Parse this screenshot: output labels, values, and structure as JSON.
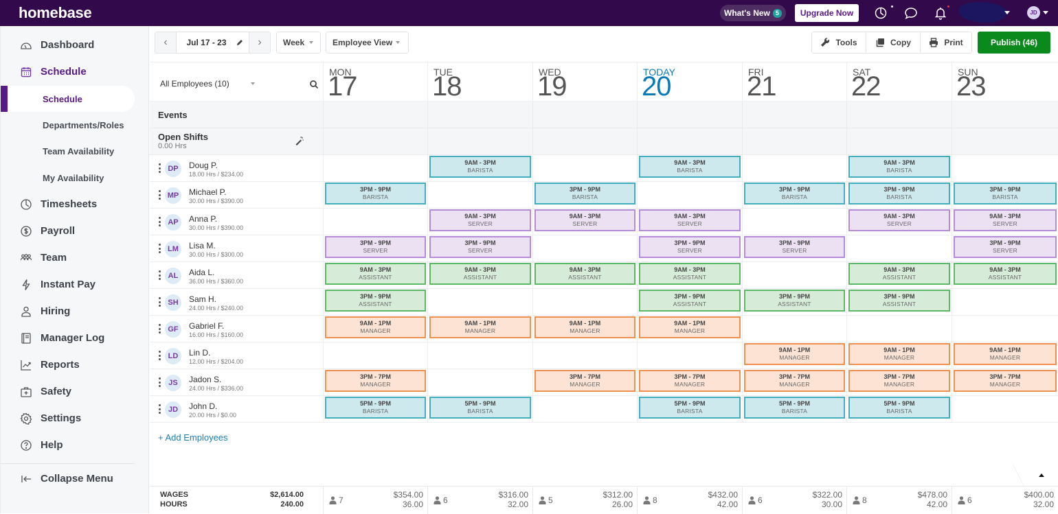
{
  "app": {
    "logo": "homebase",
    "whats_new_label": "What's New",
    "whats_new_count": "5",
    "upgrade_label": "Upgrade Now",
    "user_initials": "JD"
  },
  "sidebar": {
    "items": [
      {
        "label": "Dashboard",
        "icon": "dashboard-icon"
      },
      {
        "label": "Schedule",
        "icon": "calendar-icon",
        "active": true
      },
      {
        "label": "Timesheets",
        "icon": "clock-icon"
      },
      {
        "label": "Payroll",
        "icon": "dollar-icon"
      },
      {
        "label": "Team",
        "icon": "team-icon"
      },
      {
        "label": "Instant Pay",
        "icon": "lightning-icon"
      },
      {
        "label": "Hiring",
        "icon": "person-icon"
      },
      {
        "label": "Manager Log",
        "icon": "book-icon"
      },
      {
        "label": "Reports",
        "icon": "chart-icon"
      },
      {
        "label": "Safety",
        "icon": "first-aid-icon"
      },
      {
        "label": "Settings",
        "icon": "gear-icon"
      },
      {
        "label": "Help",
        "icon": "help-icon"
      }
    ],
    "sub_items": [
      {
        "label": "Schedule",
        "active": true
      },
      {
        "label": "Departments/Roles"
      },
      {
        "label": "Team Availability"
      },
      {
        "label": "My Availability"
      }
    ],
    "collapse_label": "Collapse Menu"
  },
  "toolbar": {
    "date_range": "Jul 17 - 23",
    "period": "Week",
    "view": "Employee View",
    "tools_label": "Tools",
    "copy_label": "Copy",
    "print_label": "Print",
    "publish_label": "Publish (46)"
  },
  "grid": {
    "employee_filter": "All Employees (10)",
    "events_label": "Events",
    "open_shifts_label": "Open Shifts",
    "open_shifts_hours": "0.00 Hrs",
    "add_employees_label": "+ Add Employees",
    "days": [
      {
        "dow": "MON",
        "num": "17"
      },
      {
        "dow": "TUE",
        "num": "18"
      },
      {
        "dow": "WED",
        "num": "19"
      },
      {
        "dow": "TODAY",
        "num": "20",
        "today": true
      },
      {
        "dow": "FRI",
        "num": "21"
      },
      {
        "dow": "SAT",
        "num": "22"
      },
      {
        "dow": "SUN",
        "num": "23"
      }
    ],
    "employees": [
      {
        "initials": "DP",
        "name": "Doug P.",
        "meta": "18.00 Hrs / $234.00",
        "shifts": [
          null,
          {
            "time": "9AM - 3PM",
            "role": "BARISTA",
            "type": "barista"
          },
          null,
          {
            "time": "9AM - 3PM",
            "role": "BARISTA",
            "type": "barista"
          },
          null,
          {
            "time": "9AM - 3PM",
            "role": "BARISTA",
            "type": "barista"
          },
          null
        ]
      },
      {
        "initials": "MP",
        "name": "Michael P.",
        "meta": "30.00 Hrs / $390.00",
        "shifts": [
          {
            "time": "3PM - 9PM",
            "role": "BARISTA",
            "type": "barista"
          },
          null,
          {
            "time": "3PM - 9PM",
            "role": "BARISTA",
            "type": "barista"
          },
          null,
          {
            "time": "3PM - 9PM",
            "role": "BARISTA",
            "type": "barista"
          },
          {
            "time": "3PM - 9PM",
            "role": "BARISTA",
            "type": "barista"
          },
          {
            "time": "3PM - 9PM",
            "role": "BARISTA",
            "type": "barista"
          }
        ]
      },
      {
        "initials": "AP",
        "name": "Anna P.",
        "meta": "30.00 Hrs / $390.00",
        "shifts": [
          null,
          {
            "time": "9AM - 3PM",
            "role": "SERVER",
            "type": "server"
          },
          {
            "time": "9AM - 3PM",
            "role": "SERVER",
            "type": "server"
          },
          {
            "time": "9AM - 3PM",
            "role": "SERVER",
            "type": "server"
          },
          null,
          {
            "time": "9AM - 3PM",
            "role": "SERVER",
            "type": "server"
          },
          {
            "time": "9AM - 3PM",
            "role": "SERVER",
            "type": "server"
          }
        ]
      },
      {
        "initials": "LM",
        "name": "Lisa M.",
        "meta": "30.00 Hrs / $300.00",
        "shifts": [
          {
            "time": "3PM - 9PM",
            "role": "SERVER",
            "type": "server"
          },
          {
            "time": "3PM - 9PM",
            "role": "SERVER",
            "type": "server"
          },
          null,
          {
            "time": "3PM - 9PM",
            "role": "SERVER",
            "type": "server"
          },
          {
            "time": "3PM - 9PM",
            "role": "SERVER",
            "type": "server"
          },
          null,
          {
            "time": "3PM - 9PM",
            "role": "SERVER",
            "type": "server"
          }
        ]
      },
      {
        "initials": "AL",
        "name": "Aida L.",
        "meta": "36.00 Hrs / $360.00",
        "shifts": [
          {
            "time": "9AM - 3PM",
            "role": "ASSISTANT",
            "type": "assistant"
          },
          {
            "time": "9AM - 3PM",
            "role": "ASSISTANT",
            "type": "assistant"
          },
          {
            "time": "9AM - 3PM",
            "role": "ASSISTANT",
            "type": "assistant"
          },
          {
            "time": "9AM - 3PM",
            "role": "ASSISTANT",
            "type": "assistant"
          },
          null,
          {
            "time": "9AM - 3PM",
            "role": "ASSISTANT",
            "type": "assistant"
          },
          {
            "time": "9AM - 3PM",
            "role": "ASSISTANT",
            "type": "assistant"
          }
        ]
      },
      {
        "initials": "SH",
        "name": "Sam H.",
        "meta": "24.00 Hrs / $240.00",
        "shifts": [
          {
            "time": "3PM - 9PM",
            "role": "ASSISTANT",
            "type": "assistant"
          },
          null,
          null,
          {
            "time": "3PM - 9PM",
            "role": "ASSISTANT",
            "type": "assistant"
          },
          {
            "time": "3PM - 9PM",
            "role": "ASSISTANT",
            "type": "assistant"
          },
          {
            "time": "3PM - 9PM",
            "role": "ASSISTANT",
            "type": "assistant"
          },
          null
        ]
      },
      {
        "initials": "GF",
        "name": "Gabriel F.",
        "meta": "16.00 Hrs / $160.00",
        "shifts": [
          {
            "time": "9AM - 1PM",
            "role": "MANAGER",
            "type": "manager"
          },
          {
            "time": "9AM - 1PM",
            "role": "MANAGER",
            "type": "manager"
          },
          {
            "time": "9AM - 1PM",
            "role": "MANAGER",
            "type": "manager"
          },
          {
            "time": "9AM - 1PM",
            "role": "MANAGER",
            "type": "manager"
          },
          null,
          null,
          null
        ]
      },
      {
        "initials": "LD",
        "name": "Lin D.",
        "meta": "12.00 Hrs / $204.00",
        "shifts": [
          null,
          null,
          null,
          null,
          {
            "time": "9AM - 1PM",
            "role": "MANAGER",
            "type": "manager"
          },
          {
            "time": "9AM - 1PM",
            "role": "MANAGER",
            "type": "manager"
          },
          {
            "time": "9AM - 1PM",
            "role": "MANAGER",
            "type": "manager"
          }
        ]
      },
      {
        "initials": "JS",
        "name": "Jadon S.",
        "meta": "24.00 Hrs / $336.00",
        "shifts": [
          {
            "time": "3PM - 7PM",
            "role": "MANAGER",
            "type": "manager"
          },
          null,
          {
            "time": "3PM - 7PM",
            "role": "MANAGER",
            "type": "manager"
          },
          {
            "time": "3PM - 7PM",
            "role": "MANAGER",
            "type": "manager"
          },
          {
            "time": "3PM - 7PM",
            "role": "MANAGER",
            "type": "manager"
          },
          {
            "time": "3PM - 7PM",
            "role": "MANAGER",
            "type": "manager"
          },
          {
            "time": "3PM - 7PM",
            "role": "MANAGER",
            "type": "manager"
          }
        ]
      },
      {
        "initials": "JD",
        "name": "John D.",
        "meta": "20.00 Hrs / $0.00",
        "shifts": [
          {
            "time": "5PM - 9PM",
            "role": "BARISTA",
            "type": "barista"
          },
          {
            "time": "5PM - 9PM",
            "role": "BARISTA",
            "type": "barista"
          },
          null,
          {
            "time": "5PM - 9PM",
            "role": "BARISTA",
            "type": "barista"
          },
          {
            "time": "5PM - 9PM",
            "role": "BARISTA",
            "type": "barista"
          },
          {
            "time": "5PM - 9PM",
            "role": "BARISTA",
            "type": "barista"
          },
          null
        ]
      }
    ]
  },
  "footer": {
    "wages_label": "WAGES",
    "hours_label": "HOURS",
    "total_wages": "$2,614.00",
    "total_hours": "240.00",
    "days": [
      {
        "count": "7",
        "wages": "$354.00",
        "hours": "36.00"
      },
      {
        "count": "6",
        "wages": "$316.00",
        "hours": "32.00"
      },
      {
        "count": "5",
        "wages": "$312.00",
        "hours": "26.00"
      },
      {
        "count": "8",
        "wages": "$432.00",
        "hours": "42.00"
      },
      {
        "count": "6",
        "wages": "$322.00",
        "hours": "30.00"
      },
      {
        "count": "8",
        "wages": "$478.00",
        "hours": "42.00"
      },
      {
        "count": "6",
        "wages": "$400.00",
        "hours": "32.00"
      }
    ]
  },
  "colors": {
    "topbar": "#32094a",
    "brand_purple": "#5a1a86",
    "publish_green": "#0a8a1c",
    "today_blue": "#0a7bb8",
    "barista": "#41aec0",
    "server": "#b58ad6",
    "assistant": "#5cb865",
    "manager": "#f0904f"
  }
}
